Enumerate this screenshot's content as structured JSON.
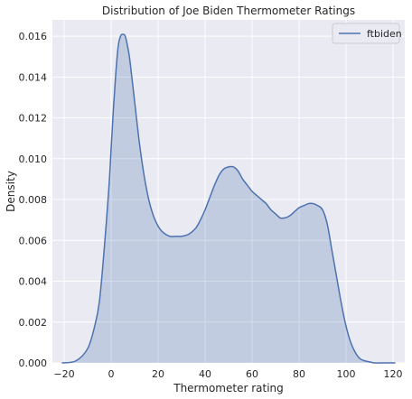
{
  "chart_data": {
    "type": "area",
    "title": "Distribution of Joe Biden Thermometer Ratings",
    "xlabel": "Thermometer rating",
    "ylabel": "Density",
    "xlim": [
      -25,
      125
    ],
    "ylim": [
      0,
      0.0168
    ],
    "xticks": [
      -20,
      0,
      20,
      40,
      60,
      80,
      100,
      120
    ],
    "xtick_labels": [
      "−20",
      "0",
      "20",
      "40",
      "60",
      "80",
      "100",
      "120"
    ],
    "yticks": [
      0,
      0.002,
      0.004,
      0.006,
      0.008,
      0.01,
      0.012,
      0.014,
      0.016
    ],
    "ytick_labels": [
      "0.000",
      "0.002",
      "0.004",
      "0.006",
      "0.008",
      "0.010",
      "0.012",
      "0.014",
      "0.016"
    ],
    "grid": true,
    "legend_position": "top-right",
    "series": [
      {
        "name": "ftbiden",
        "color": "#4c72b0",
        "fill_color": "#4c72b0",
        "x": [
          -21,
          -15,
          -10,
          -7,
          -5,
          -3,
          -1,
          0,
          1,
          2,
          3,
          4,
          5,
          6,
          7,
          8,
          10,
          12,
          14,
          16,
          18,
          20,
          22,
          25,
          28,
          30,
          33,
          36,
          38,
          40,
          42,
          44,
          46,
          48,
          50,
          52,
          54,
          56,
          58,
          60,
          62,
          64,
          66,
          68,
          70,
          72,
          74,
          76,
          78,
          80,
          82,
          84,
          86,
          88,
          90,
          92,
          94,
          96,
          98,
          100,
          102,
          104,
          106,
          108,
          110,
          112,
          115,
          118,
          121
        ],
        "y": [
          0.0,
          0.0001,
          0.0007,
          0.0018,
          0.003,
          0.0055,
          0.0085,
          0.0105,
          0.0125,
          0.0142,
          0.0155,
          0.016,
          0.0161,
          0.016,
          0.0155,
          0.0148,
          0.0128,
          0.0108,
          0.0092,
          0.008,
          0.0072,
          0.0067,
          0.0064,
          0.0062,
          0.0062,
          0.0062,
          0.0063,
          0.0066,
          0.007,
          0.0075,
          0.0081,
          0.0087,
          0.0092,
          0.0095,
          0.0096,
          0.0096,
          0.0094,
          0.009,
          0.0087,
          0.0084,
          0.0082,
          0.008,
          0.0078,
          0.0075,
          0.0073,
          0.0071,
          0.0071,
          0.0072,
          0.0074,
          0.0076,
          0.0077,
          0.0078,
          0.0078,
          0.0077,
          0.0075,
          0.0068,
          0.0055,
          0.0042,
          0.0029,
          0.0018,
          0.001,
          0.0005,
          0.0002,
          0.0001,
          5e-05,
          0.0,
          0.0,
          0.0,
          0.0
        ]
      }
    ]
  }
}
